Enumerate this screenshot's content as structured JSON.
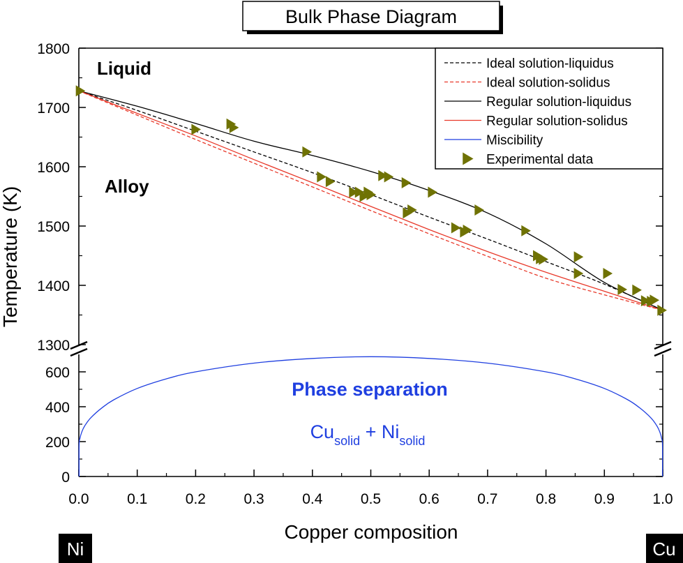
{
  "chart_data": {
    "type": "line",
    "title": "Bulk Phase Diagram",
    "xlabel": "Copper composition",
    "ylabel": "Temperature (K)",
    "xlim": [
      0,
      1
    ],
    "x_ticks": [
      "0.0",
      "0.1",
      "0.2",
      "0.3",
      "0.4",
      "0.5",
      "0.6",
      "0.7",
      "0.8",
      "0.9",
      "1.0"
    ],
    "y_axis_upper": {
      "ylim": [
        1300,
        1800
      ],
      "ticks": [
        "1300",
        "1400",
        "1500",
        "1600",
        "1700",
        "1800"
      ]
    },
    "y_axis_lower": {
      "ylim": [
        0,
        700
      ],
      "ticks": [
        "0",
        "200",
        "400",
        "600"
      ]
    },
    "axis_break": true,
    "grid": false,
    "legend_position": "top-right",
    "annotations": {
      "liquid": "Liquid",
      "alloy": "Alloy",
      "phase_separation": "Phase separation",
      "cu_main": "Cu",
      "cu_sub": "solid",
      "plus": " + ",
      "ni_main": "Ni",
      "ni_sub": "solid"
    },
    "endpoint_labels": {
      "left": "Ni",
      "right": "Cu"
    },
    "series": [
      {
        "name": "Ideal solution-liquidus",
        "color": "#000000",
        "dash": "dashed",
        "panel": "upper",
        "x": [
          0,
          0.1,
          0.2,
          0.3,
          0.4,
          0.5,
          0.6,
          0.7,
          0.8,
          0.9,
          1.0
        ],
        "y": [
          1728,
          1695,
          1660,
          1625,
          1590,
          1553,
          1515,
          1478,
          1440,
          1402,
          1358
        ]
      },
      {
        "name": "Ideal solution-solidus",
        "color": "#e8392a",
        "dash": "dashed",
        "panel": "upper",
        "x": [
          0,
          0.1,
          0.2,
          0.3,
          0.4,
          0.5,
          0.6,
          0.7,
          0.8,
          0.9,
          1.0
        ],
        "y": [
          1728,
          1687,
          1646,
          1606,
          1566,
          1526,
          1487,
          1449,
          1412,
          1384,
          1358
        ]
      },
      {
        "name": "Regular solution-liquidus",
        "color": "#000000",
        "dash": "solid",
        "panel": "upper",
        "x": [
          0,
          0.1,
          0.2,
          0.3,
          0.4,
          0.5,
          0.6,
          0.7,
          0.8,
          0.9,
          1.0
        ],
        "y": [
          1728,
          1702,
          1673,
          1643,
          1619,
          1592,
          1560,
          1522,
          1470,
          1405,
          1358
        ]
      },
      {
        "name": "Regular solution-solidus",
        "color": "#e8392a",
        "dash": "solid",
        "panel": "upper",
        "x": [
          0,
          0.1,
          0.2,
          0.3,
          0.4,
          0.5,
          0.6,
          0.7,
          0.8,
          0.9,
          1.0
        ],
        "y": [
          1728,
          1690,
          1652,
          1612,
          1573,
          1533,
          1494,
          1457,
          1422,
          1390,
          1358
        ]
      },
      {
        "name": "Miscibility",
        "color": "#1f3fe0",
        "dash": "solid",
        "panel": "lower",
        "x": [
          0.0005,
          0.002,
          0.005,
          0.01,
          0.02,
          0.04,
          0.06,
          0.1,
          0.15,
          0.2,
          0.3,
          0.4,
          0.5,
          0.6,
          0.7,
          0.8,
          0.85,
          0.9,
          0.94,
          0.96,
          0.98,
          0.99,
          0.995,
          0.998,
          0.9995
        ],
        "y": [
          180,
          220,
          255,
          290,
          335,
          395,
          440,
          505,
          560,
          600,
          650,
          677,
          687,
          677,
          650,
          600,
          560,
          505,
          440,
          395,
          335,
          290,
          255,
          220,
          180
        ]
      },
      {
        "name": "Experimental data",
        "color": "#6f7204",
        "marker": "triangle-right",
        "panel": "upper",
        "points": [
          [
            0.002,
            1728
          ],
          [
            0.2,
            1663
          ],
          [
            0.26,
            1672
          ],
          [
            0.265,
            1666
          ],
          [
            0.39,
            1625
          ],
          [
            0.415,
            1583
          ],
          [
            0.43,
            1575
          ],
          [
            0.47,
            1557
          ],
          [
            0.48,
            1557
          ],
          [
            0.488,
            1550
          ],
          [
            0.495,
            1557
          ],
          [
            0.5,
            1553
          ],
          [
            0.52,
            1585
          ],
          [
            0.53,
            1583
          ],
          [
            0.56,
            1573
          ],
          [
            0.562,
            1522
          ],
          [
            0.57,
            1527
          ],
          [
            0.605,
            1557
          ],
          [
            0.645,
            1497
          ],
          [
            0.66,
            1490
          ],
          [
            0.665,
            1493
          ],
          [
            0.685,
            1527
          ],
          [
            0.765,
            1492
          ],
          [
            0.785,
            1450
          ],
          [
            0.79,
            1445
          ],
          [
            0.795,
            1444
          ],
          [
            0.855,
            1448
          ],
          [
            0.855,
            1420
          ],
          [
            0.905,
            1420
          ],
          [
            0.93,
            1393
          ],
          [
            0.955,
            1392
          ],
          [
            0.97,
            1374
          ],
          [
            0.98,
            1373
          ],
          [
            0.985,
            1375
          ],
          [
            0.998,
            1358
          ]
        ]
      }
    ]
  }
}
